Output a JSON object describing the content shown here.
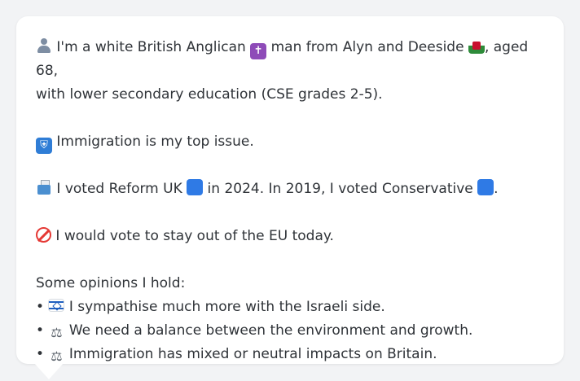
{
  "profile": {
    "line1_a": " I'm a white British Anglican ",
    "line1_b": " man from Alyn and Deeside ",
    "line1_c": ", aged 68,",
    "line2": "with lower secondary education (CSE grades 2-5).",
    "issue": " Immigration is my top issue.",
    "vote_a": " I voted Reform UK ",
    "vote_b": " in 2024. In 2019, I voted Conservative ",
    "vote_c": ".",
    "eu": " I would vote to stay out of the EU today.",
    "opinions_heading": "Some opinions I hold:",
    "bullet_char": "•",
    "opinions": [
      " I sympathise much more with the Israeli side.",
      " We need a balance between the environment and growth.",
      " Immigration has mixed or neutral impacts on Britain."
    ]
  },
  "icons": {
    "person": "person-silhouette-icon",
    "cross": "latin-cross-icon",
    "wales_flag": "wales-flag-icon",
    "immigration": "passport-control-icon",
    "ballot": "ballot-box-icon",
    "reform_color": "blue-square-icon",
    "conservative_color": "blue-square-icon",
    "no_entry": "prohibited-icon",
    "israel_flag": "israel-flag-icon",
    "scales": "balance-scale-icon"
  },
  "colors": {
    "background": "#f2f3f5",
    "bubble": "#ffffff",
    "text": "#2f3338",
    "blue_square": "#2f7ae5",
    "prohibited": "#e53935"
  }
}
